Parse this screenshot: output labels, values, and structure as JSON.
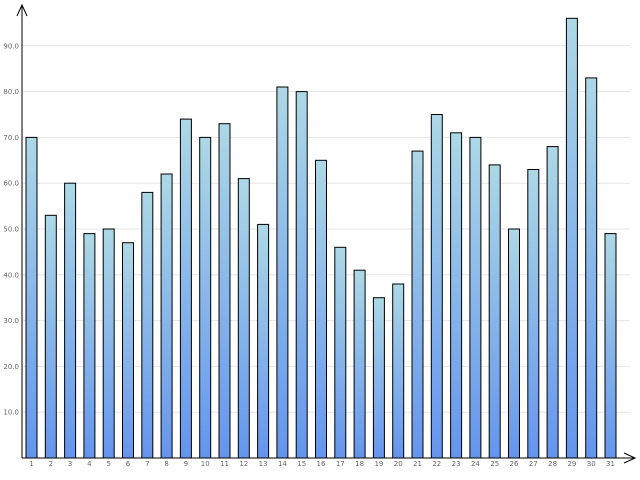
{
  "chart_data": {
    "type": "bar",
    "title": "",
    "xlabel": "",
    "ylabel": "",
    "categories": [
      "1",
      "2",
      "3",
      "4",
      "5",
      "6",
      "7",
      "8",
      "9",
      "10",
      "11",
      "12",
      "13",
      "14",
      "15",
      "16",
      "17",
      "18",
      "19",
      "20",
      "21",
      "22",
      "23",
      "24",
      "25",
      "26",
      "27",
      "28",
      "29",
      "30",
      "31"
    ],
    "values": [
      70,
      53,
      60,
      49,
      50,
      47,
      58,
      62,
      74,
      70,
      73,
      61,
      51,
      81,
      80,
      65,
      46,
      41,
      35,
      38,
      67,
      75,
      71,
      70,
      64,
      50,
      63,
      68,
      96,
      83,
      49
    ],
    "y_ticks": [
      "10.0",
      "20.0",
      "30.0",
      "40.0",
      "50.0",
      "60.0",
      "70.0",
      "80.0",
      "90.0"
    ],
    "ylim": [
      0,
      100
    ],
    "grid": true,
    "legend": "none",
    "colors": {
      "bar_top": "#add8e6",
      "bar_bottom": "#6495ed",
      "bar_stroke": "#000000",
      "grid": "#e6e6e6",
      "tick_text": "#666666"
    }
  }
}
